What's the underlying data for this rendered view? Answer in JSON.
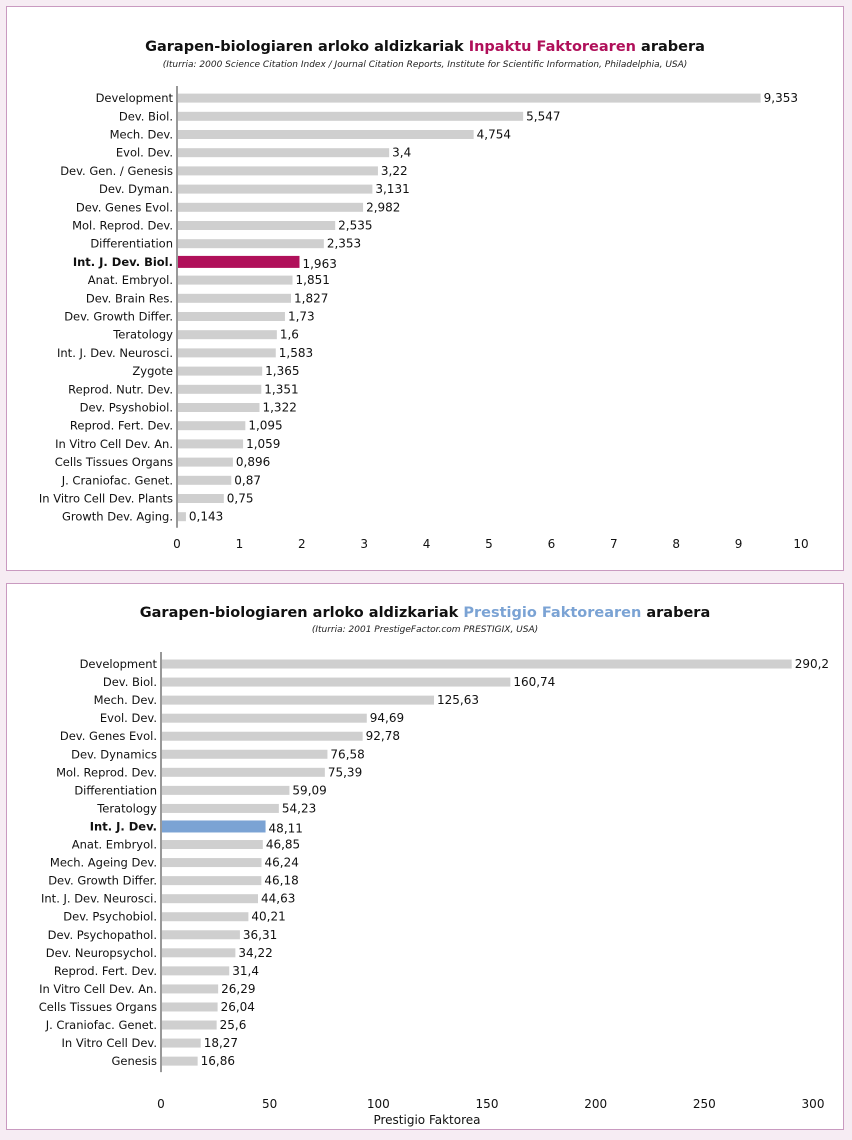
{
  "colors": {
    "bar": "#cfcfcf",
    "highlight1": "#b0105a",
    "highlight2": "#7ba3d4",
    "axis": "#333333"
  },
  "chart_data": [
    {
      "type": "bar",
      "orientation": "horizontal",
      "title_pre": "Garapen-biologiaren arloko aldizkariak ",
      "title_highlight": "Inpaktu Faktorearen",
      "title_post": " arabera",
      "subtitle": "(Iturria: 2000 Science Citation Index / Journal Citation Reports, Institute for Scientific Information, Philadelphia, USA)",
      "xlabel": "",
      "xlim": [
        0,
        10
      ],
      "xticks": [
        "0",
        "1",
        "2",
        "3",
        "4",
        "5",
        "6",
        "7",
        "8",
        "9",
        "10"
      ],
      "highlight_index": 9,
      "categories": [
        "Development",
        "Dev. Biol.",
        "Mech. Dev.",
        "Evol. Dev.",
        "Dev. Gen. / Genesis",
        "Dev. Dyman.",
        "Dev. Genes Evol.",
        "Mol. Reprod. Dev.",
        "Differentiation",
        "Int. J. Dev. Biol.",
        "Anat. Embryol.",
        "Dev. Brain Res.",
        "Dev. Growth Differ.",
        "Teratology",
        "Int. J. Dev. Neurosci.",
        "Zygote",
        "Reprod. Nutr. Dev.",
        "Dev. Psyshobiol.",
        "Reprod. Fert. Dev.",
        "In Vitro Cell Dev. An.",
        "Cells Tissues Organs",
        "J. Craniofac. Genet.",
        "In Vitro Cell Dev. Plants",
        "Growth Dev. Aging."
      ],
      "values": [
        9.353,
        5.547,
        4.754,
        3.4,
        3.22,
        3.131,
        2.982,
        2.535,
        2.353,
        1.963,
        1.851,
        1.827,
        1.73,
        1.6,
        1.583,
        1.365,
        1.351,
        1.322,
        1.095,
        1.059,
        0.896,
        0.87,
        0.75,
        0.143
      ],
      "value_labels": [
        "9,353",
        "5,547",
        "4,754",
        "3,4",
        "3,22",
        "3,131",
        "2,982",
        "2,535",
        "2,353",
        "1,963",
        "1,851",
        "1,827",
        "1,73",
        "1,6",
        "1,583",
        "1,365",
        "1,351",
        "1,322",
        "1,095",
        "1,059",
        "0,896",
        "0,87",
        "0,75",
        "0,143"
      ]
    },
    {
      "type": "bar",
      "orientation": "horizontal",
      "title_pre": "Garapen-biologiaren arloko aldizkariak ",
      "title_highlight": "Prestigio Faktorearen",
      "title_post": " arabera",
      "subtitle": "(Iturria: 2001 PrestigeFactor.com PRESTIGIX, USA)",
      "xlabel": "Prestigio Faktorea",
      "xlim": [
        0,
        300
      ],
      "xticks": [
        "0",
        "50",
        "100",
        "150",
        "200",
        "250",
        "300"
      ],
      "highlight_index": 9,
      "categories": [
        "Development",
        "Dev. Biol.",
        "Mech. Dev.",
        "Evol. Dev.",
        "Dev. Genes Evol.",
        "Dev. Dynamics",
        "Mol. Reprod. Dev.",
        "Differentiation",
        "Teratology",
        "Int. J. Dev.",
        "Anat. Embryol.",
        "Mech. Ageing Dev.",
        "Dev. Growth Differ.",
        "Int. J. Dev. Neurosci.",
        "Dev. Psychobiol.",
        "Dev. Psychopathol.",
        "Dev. Neuropsychol.",
        "Reprod. Fert. Dev.",
        "In Vitro Cell Dev. An.",
        "Cells Tissues Organs",
        "J. Craniofac. Genet.",
        "In Vitro Cell Dev.",
        "Genesis"
      ],
      "values": [
        290.2,
        160.74,
        125.63,
        94.69,
        92.78,
        76.58,
        75.39,
        59.09,
        54.23,
        48.11,
        46.85,
        46.24,
        46.18,
        44.63,
        40.21,
        36.31,
        34.22,
        31.4,
        26.29,
        26.04,
        25.6,
        18.27,
        16.86
      ],
      "value_labels": [
        "290,2",
        "160,74",
        "125,63",
        "94,69",
        "92,78",
        "76,58",
        "75,39",
        "59,09",
        "54,23",
        "48,11",
        "46,85",
        "46,24",
        "46,18",
        "44,63",
        "40,21",
        "36,31",
        "34,22",
        "31,4",
        "26,29",
        "26,04",
        "25,6",
        "18,27",
        "16,86"
      ]
    }
  ]
}
